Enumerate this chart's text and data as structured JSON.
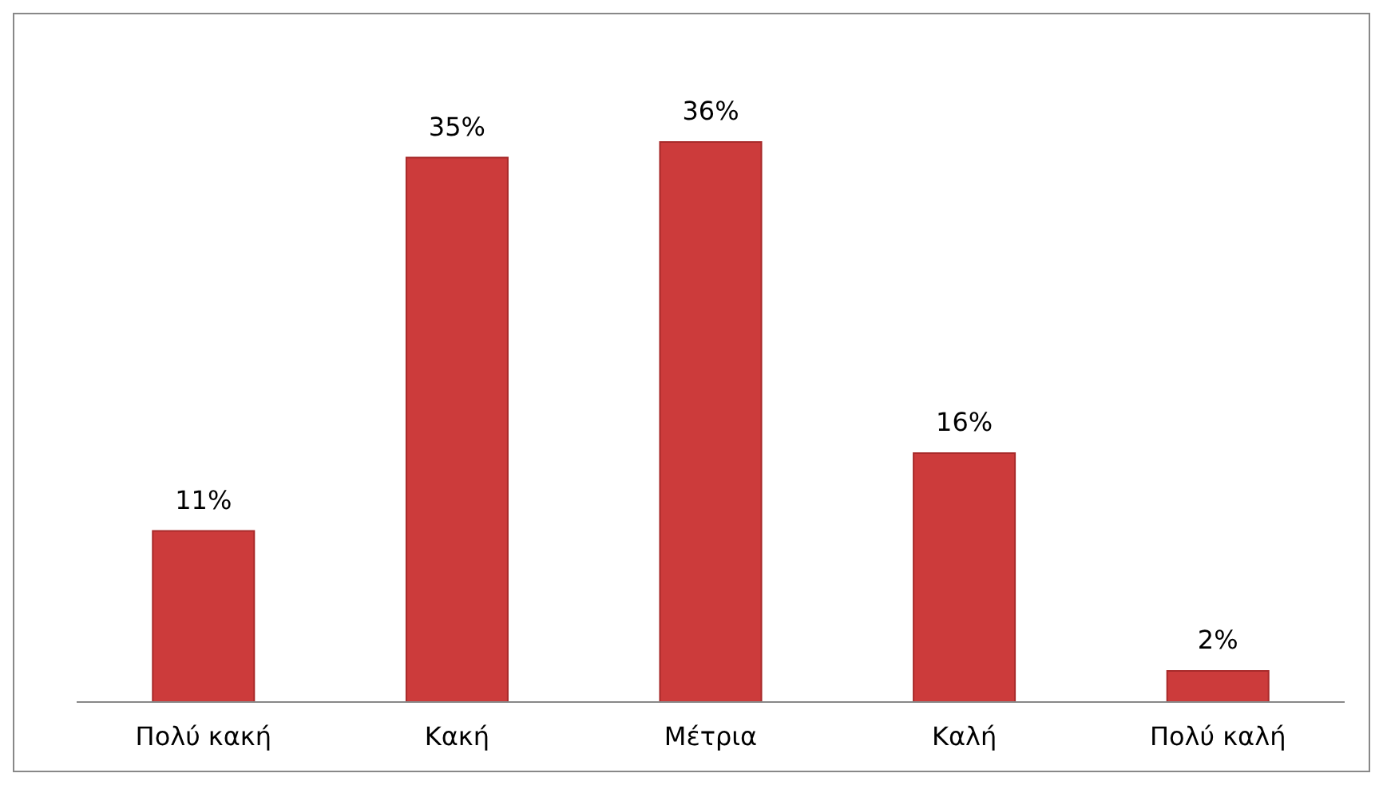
{
  "chart_data": {
    "type": "bar",
    "categories": [
      "Πολύ κακή",
      "Κακή",
      "Μέτρια",
      "Καλή",
      "Πολύ καλή"
    ],
    "values": [
      11,
      35,
      36,
      16,
      2
    ],
    "value_labels": [
      "11%",
      "35%",
      "36%",
      "16%",
      "2%"
    ],
    "color": "#cc3b3b"
  }
}
